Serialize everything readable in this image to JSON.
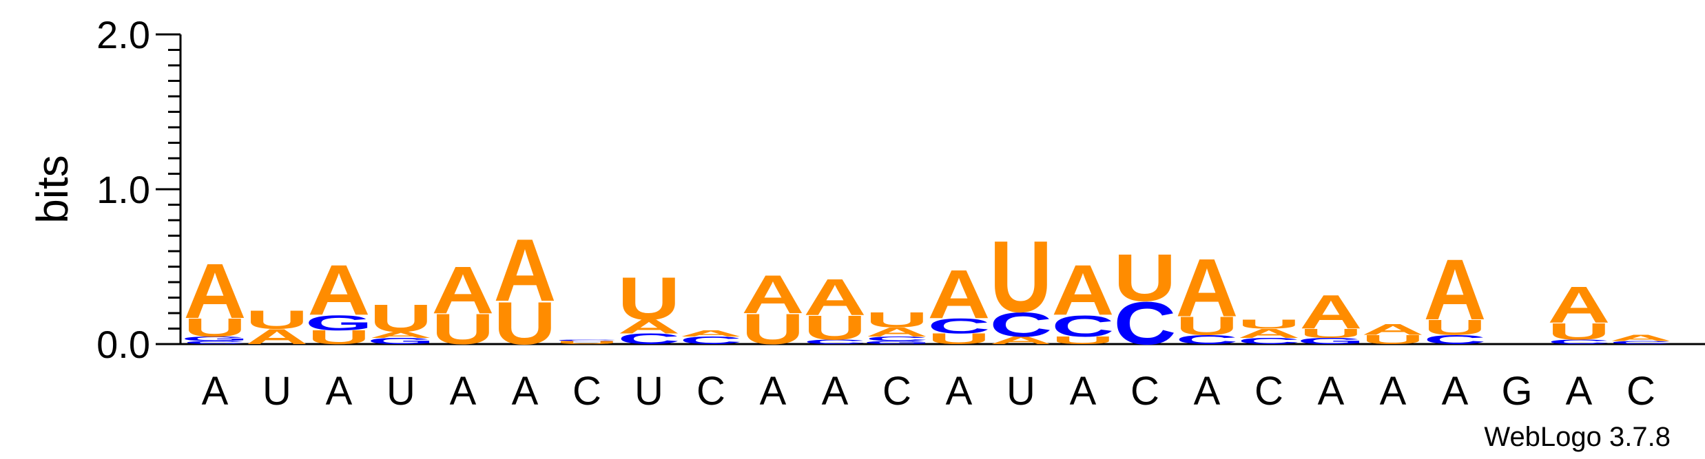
{
  "chart_data": {
    "type": "sequence-logo",
    "title": "",
    "xlabel": "",
    "ylabel": "bits",
    "ylim": [
      0,
      2.0
    ],
    "y_ticks": [
      "0.0",
      "1.0",
      "2.0"
    ],
    "footer": "WebLogo 3.7.8",
    "colors": {
      "A": "#ff8c00",
      "U": "#ff8c00",
      "C": "#0000ff",
      "G": "#0000ff"
    },
    "positions": [
      "A",
      "U",
      "A",
      "U",
      "A",
      "A",
      "C",
      "U",
      "C",
      "A",
      "A",
      "C",
      "A",
      "U",
      "A",
      "C",
      "A",
      "C",
      "A",
      "A",
      "A",
      "G",
      "A",
      "C"
    ],
    "stacks": [
      [
        {
          "letter": "C",
          "bits": 0.02
        },
        {
          "letter": "G",
          "bits": 0.03
        },
        {
          "letter": "U",
          "bits": 0.12
        },
        {
          "letter": "A",
          "bits": 0.36
        }
      ],
      [
        {
          "letter": "A",
          "bits": 0.1
        },
        {
          "letter": "U",
          "bits": 0.12
        }
      ],
      [
        {
          "letter": "U",
          "bits": 0.09
        },
        {
          "letter": "G",
          "bits": 0.1
        },
        {
          "letter": "A",
          "bits": 0.33
        }
      ],
      [
        {
          "letter": "G",
          "bits": 0.04
        },
        {
          "letter": "A",
          "bits": 0.04
        },
        {
          "letter": "U",
          "bits": 0.18
        }
      ],
      [
        {
          "letter": "U",
          "bits": 0.2
        },
        {
          "letter": "A",
          "bits": 0.31
        }
      ],
      [
        {
          "letter": "U",
          "bits": 0.28
        },
        {
          "letter": "A",
          "bits": 0.41
        }
      ],
      [
        {
          "letter": "U",
          "bits": 0.02
        },
        {
          "letter": "C",
          "bits": 0.01
        }
      ],
      [
        {
          "letter": "C",
          "bits": 0.07
        },
        {
          "letter": "A",
          "bits": 0.09
        },
        {
          "letter": "U",
          "bits": 0.28
        }
      ],
      [
        {
          "letter": "C",
          "bits": 0.05
        },
        {
          "letter": "A",
          "bits": 0.04
        }
      ],
      [
        {
          "letter": "U",
          "bits": 0.2
        },
        {
          "letter": "A",
          "bits": 0.25
        }
      ],
      [
        {
          "letter": "C",
          "bits": 0.03
        },
        {
          "letter": "U",
          "bits": 0.16
        },
        {
          "letter": "A",
          "bits": 0.24
        }
      ],
      [
        {
          "letter": "G",
          "bits": 0.02
        },
        {
          "letter": "C",
          "bits": 0.03
        },
        {
          "letter": "A",
          "bits": 0.06
        },
        {
          "letter": "U",
          "bits": 0.1
        }
      ],
      [
        {
          "letter": "U",
          "bits": 0.07
        },
        {
          "letter": "C",
          "bits": 0.1
        },
        {
          "letter": "A",
          "bits": 0.32
        }
      ],
      [
        {
          "letter": "A",
          "bits": 0.05
        },
        {
          "letter": "C",
          "bits": 0.16
        },
        {
          "letter": "U",
          "bits": 0.47
        }
      ],
      [
        {
          "letter": "U",
          "bits": 0.05
        },
        {
          "letter": "C",
          "bits": 0.14
        },
        {
          "letter": "A",
          "bits": 0.33
        }
      ],
      [
        {
          "letter": "C",
          "bits": 0.28
        },
        {
          "letter": "U",
          "bits": 0.31
        }
      ],
      [
        {
          "letter": "C",
          "bits": 0.06
        },
        {
          "letter": "U",
          "bits": 0.12
        },
        {
          "letter": "A",
          "bits": 0.38
        }
      ],
      [
        {
          "letter": "C",
          "bits": 0.04
        },
        {
          "letter": "A",
          "bits": 0.06
        },
        {
          "letter": "U",
          "bits": 0.06
        }
      ],
      [
        {
          "letter": "G",
          "bits": 0.04
        },
        {
          "letter": "U",
          "bits": 0.06
        },
        {
          "letter": "A",
          "bits": 0.22
        }
      ],
      [
        {
          "letter": "U",
          "bits": 0.06
        },
        {
          "letter": "A",
          "bits": 0.07
        }
      ],
      [
        {
          "letter": "C",
          "bits": 0.06
        },
        {
          "letter": "U",
          "bits": 0.1
        },
        {
          "letter": "A",
          "bits": 0.4
        }
      ],
      [],
      [
        {
          "letter": "C",
          "bits": 0.03
        },
        {
          "letter": "U",
          "bits": 0.11
        },
        {
          "letter": "A",
          "bits": 0.24
        }
      ],
      [
        {
          "letter": "C",
          "bits": 0.02
        },
        {
          "letter": "A",
          "bits": 0.04
        }
      ]
    ]
  }
}
